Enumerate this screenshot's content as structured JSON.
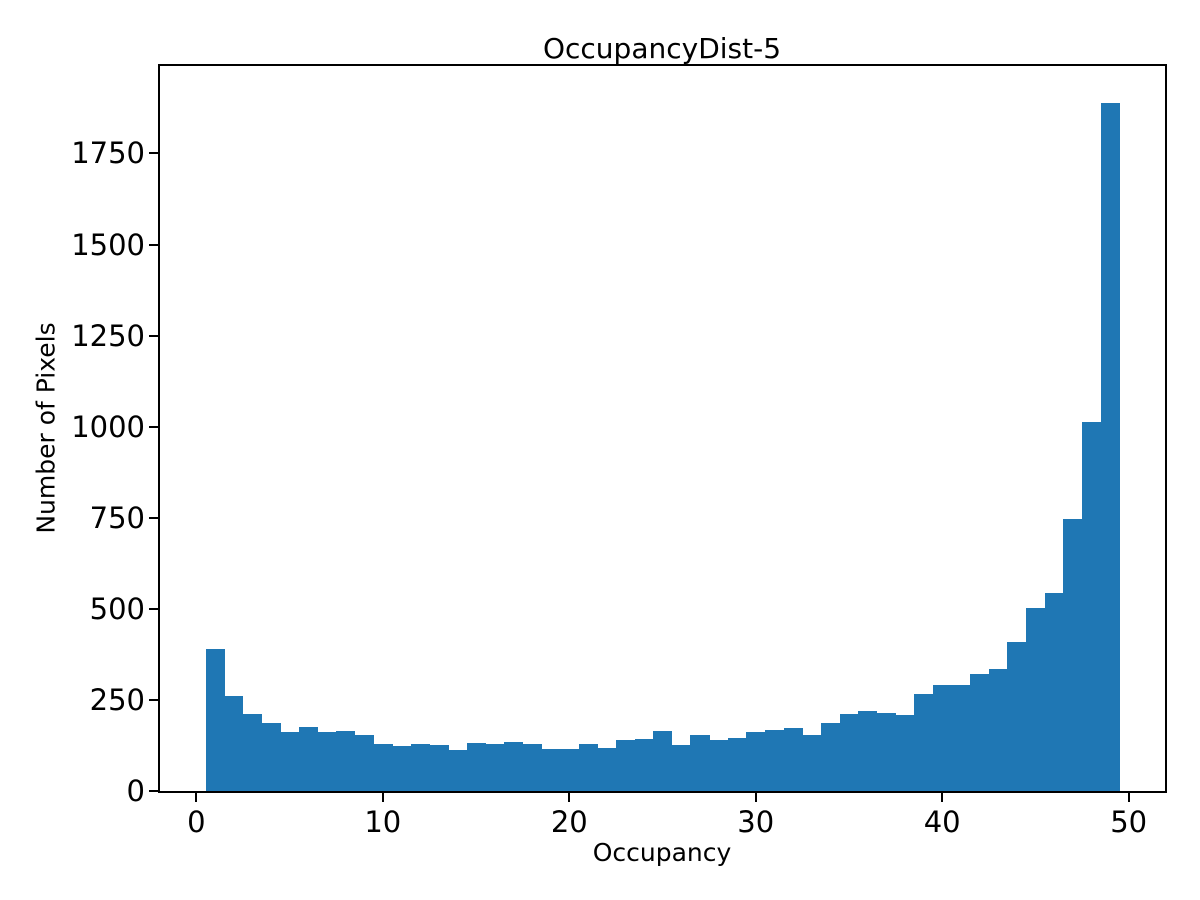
{
  "chart_data": {
    "type": "bar",
    "subtype": "histogram",
    "title": "OccupancyDist-5",
    "xlabel": "Occupancy",
    "ylabel": "Number of Pixels",
    "bar_color": "#1f77b4",
    "background_color": "#ffffff",
    "grid": false,
    "legend_position": "none",
    "bins": {
      "start": 0.5,
      "width": 1
    },
    "bin_centers": [
      1,
      2,
      3,
      4,
      5,
      6,
      7,
      8,
      9,
      10,
      11,
      12,
      13,
      14,
      15,
      16,
      17,
      18,
      19,
      20,
      21,
      22,
      23,
      24,
      25,
      26,
      27,
      28,
      29,
      30,
      31,
      32,
      33,
      34,
      35,
      36,
      37,
      38,
      39,
      40,
      41,
      42,
      43,
      44,
      45,
      46,
      47,
      48,
      49
    ],
    "values": [
      390,
      260,
      212,
      186,
      161,
      175,
      162,
      166,
      155,
      128,
      123,
      129,
      125,
      113,
      132,
      128,
      134,
      128,
      115,
      116,
      128,
      119,
      140,
      143,
      164,
      125,
      155,
      139,
      146,
      162,
      168,
      172,
      153,
      186,
      211,
      219,
      214,
      208,
      265,
      291,
      291,
      321,
      335,
      409,
      502,
      543,
      746,
      1012,
      1888
    ],
    "xticks": [
      0,
      10,
      20,
      30,
      40,
      50
    ],
    "yticks": [
      0,
      250,
      500,
      750,
      1000,
      1250,
      1500,
      1750
    ],
    "xlim": [
      -1.95,
      51.95
    ],
    "ylim": [
      0,
      1990
    ]
  }
}
